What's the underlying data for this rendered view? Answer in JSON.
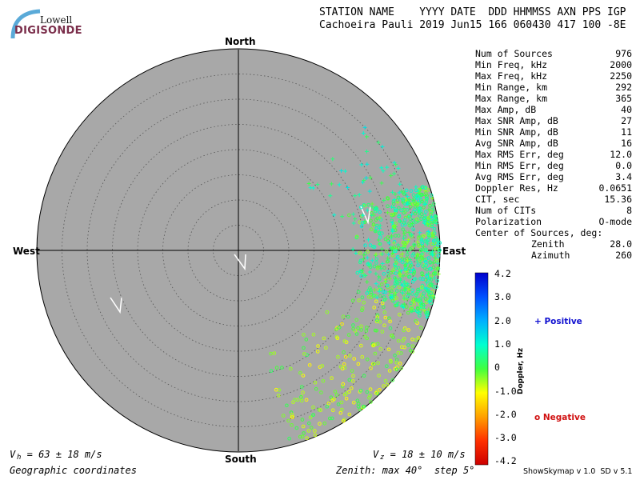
{
  "logo": {
    "top": "Lowell",
    "bottom": "DIGISONDE"
  },
  "header": {
    "line1": "STATION NAME    YYYY DATE  DDD HHMMSS AXN PPS IGP",
    "line2": "Cachoeira Pauli 2019 Jun15 166 060430 417 100 -8E"
  },
  "directions": {
    "north": "North",
    "south": "South",
    "east": "East",
    "west": "West"
  },
  "stats": [
    {
      "label": "Num of Sources",
      "value": "976"
    },
    {
      "label": "Min Freq, kHz",
      "value": "2000"
    },
    {
      "label": "Max Freq, kHz",
      "value": "2250"
    },
    {
      "label": "Min Range, km",
      "value": "292"
    },
    {
      "label": "Max Range, km",
      "value": "365"
    },
    {
      "label": "Max Amp, dB",
      "value": "40"
    },
    {
      "label": "Max SNR Amp, dB",
      "value": "27"
    },
    {
      "label": "Min SNR Amp, dB",
      "value": "11"
    },
    {
      "label": "Avg SNR Amp, dB",
      "value": "16"
    },
    {
      "label": "Max RMS Err, deg",
      "value": "12.0"
    },
    {
      "label": "Min RMS Err, deg",
      "value": "0.0"
    },
    {
      "label": "Avg RMS Err, deg",
      "value": "3.4"
    },
    {
      "label": "Doppler Res, Hz",
      "value": "0.0651"
    },
    {
      "label": "CIT, sec",
      "value": "15.36"
    },
    {
      "label": "Num of CITs",
      "value": "8"
    },
    {
      "label": "Polarization",
      "value": "O-mode"
    }
  ],
  "center": {
    "title": "Center of Sources, deg:",
    "zenith_label": "Zenith",
    "zenith_value": "28.0",
    "azimuth_label": "Azimuth",
    "azimuth_value": "260"
  },
  "colorbar": {
    "title": "Doppler, Hz",
    "ticks": [
      "4.2",
      "3.0",
      "2.0",
      "1.0",
      "0",
      "-1.0",
      "-2.0",
      "-3.0",
      "-4.2"
    ],
    "positive_label": "+ Positive",
    "negative_label": "o Negative",
    "colors": [
      "#0000cc",
      "#0050ff",
      "#00b0ff",
      "#00ffd0",
      "#40ff40",
      "#ffff00",
      "#ffa000",
      "#ff3000",
      "#cc0000"
    ]
  },
  "footer": {
    "vh": "V  = 63 ± 18 m/s",
    "vh_sub": "h",
    "vz": "V  = 18 ± 10 m/s",
    "vz_sub": "z",
    "coords": "Geographic coordinates",
    "zenith_info": "Zenith: max 40°  step 5°",
    "version": "ShowSkymap v 1.0  SD v 5.1"
  },
  "chart_data": {
    "type": "scatter",
    "projection": "polar skymap",
    "zenith_max_deg": 40,
    "zenith_step_deg": 5,
    "grid": true,
    "source_count": 976,
    "center_of_sources": {
      "zenith_deg": 28.0,
      "azimuth_deg": 260
    },
    "clusters": [
      {
        "azimuth_deg_range": [
          70,
          110
        ],
        "zenith_deg_range": [
          22,
          40
        ],
        "doppler_hz_range": [
          -0.5,
          1.2
        ],
        "marker": "mixed",
        "count": 700
      },
      {
        "azimuth_deg_range": [
          110,
          165
        ],
        "zenith_deg_range": [
          20,
          40
        ],
        "doppler_hz_range": [
          -1.2,
          0.3
        ],
        "marker": "o",
        "count": 230
      },
      {
        "azimuth_deg_range": [
          45,
          75
        ],
        "zenith_deg_range": [
          14,
          36
        ],
        "doppler_hz_range": [
          0.0,
          1.5
        ],
        "marker": "+",
        "count": 46
      }
    ],
    "vh_m_s": [
      63,
      18
    ],
    "vz_m_s": [
      18,
      10
    ],
    "colorbar_range_hz": [
      -4.2,
      4.2
    ]
  }
}
